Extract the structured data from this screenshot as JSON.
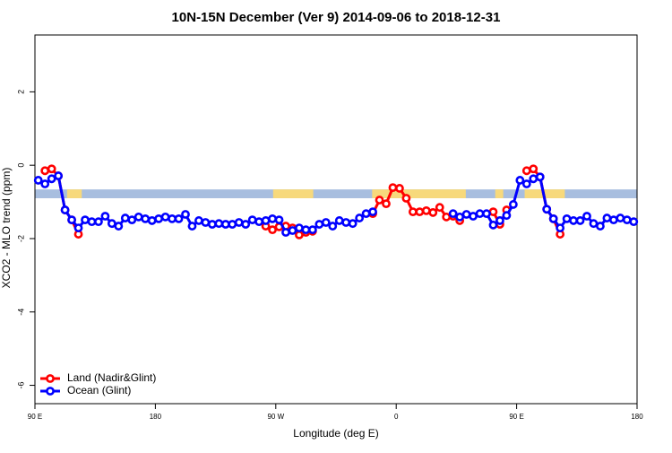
{
  "chart_data": {
    "type": "line",
    "title": "10N-15N December (Ver 9)   2014-09-06 to 2018-12-31",
    "x_label": "Longitude (deg E)",
    "y_label": "XCO2 - MLO trend (ppm)",
    "x": [
      92.5,
      97.5,
      102.5,
      107.5,
      112.5,
      117.5,
      122.5,
      127.5,
      132.5,
      137.5,
      142.5,
      147.5,
      152.5,
      157.5,
      162.5,
      167.5,
      172.5,
      177.5,
      182.5,
      187.5,
      192.5,
      197.5,
      202.5,
      207.5,
      212.5,
      217.5,
      222.5,
      227.5,
      232.5,
      237.5,
      242.5,
      247.5,
      252.5,
      257.5,
      262.5,
      267.5,
      272.5,
      277.5,
      282.5,
      287.5,
      292.5,
      297.5,
      302.5,
      307.5,
      312.5,
      317.5,
      322.5,
      327.5,
      332.5,
      337.5,
      342.5,
      347.5,
      352.5,
      357.5,
      362.5,
      367.5,
      372.5,
      377.5,
      382.5,
      387.5,
      392.5,
      397.5,
      402.5,
      407.5,
      412.5,
      417.5,
      422.5,
      427.5,
      432.5,
      437.5,
      442.5,
      447.5,
      452.5,
      457.5,
      462.5,
      467.5,
      472.5,
      477.5,
      482.5,
      487.5,
      492.5,
      497.5,
      502.5,
      507.5,
      512.5,
      517.5,
      522.5,
      527.5,
      532.5,
      537.5
    ],
    "series": [
      {
        "name": "Land (Nadir&Glint)",
        "color": "#ff0000",
        "values": [
          null,
          -0.15,
          -0.1,
          -0.29,
          -1.22,
          -1.49,
          -1.88,
          null,
          null,
          null,
          null,
          null,
          null,
          null,
          null,
          null,
          null,
          null,
          null,
          null,
          null,
          null,
          null,
          null,
          null,
          null,
          null,
          null,
          null,
          null,
          null,
          null,
          null,
          null,
          -1.66,
          -1.76,
          -1.68,
          -1.66,
          -1.71,
          -1.9,
          -1.83,
          -1.8,
          null,
          null,
          null,
          null,
          null,
          null,
          null,
          null,
          -1.32,
          -0.95,
          -1.05,
          -0.61,
          -0.63,
          -0.9,
          -1.27,
          -1.27,
          -1.24,
          -1.29,
          -1.15,
          -1.41,
          -1.39,
          -1.51,
          null,
          null,
          null,
          null,
          -1.27,
          -1.61,
          -1.22,
          null,
          null,
          -0.15,
          -0.1,
          -0.32,
          -1.2,
          -1.46,
          -1.88,
          null,
          null,
          null,
          null,
          null,
          null,
          null,
          null,
          null,
          null,
          null
        ]
      },
      {
        "name": "Ocean (Glint)",
        "color": "#0000ff",
        "values": [
          -0.41,
          -0.51,
          -0.37,
          -0.29,
          -1.22,
          -1.49,
          -1.71,
          -1.49,
          -1.54,
          -1.54,
          -1.39,
          -1.59,
          -1.66,
          -1.44,
          -1.49,
          -1.41,
          -1.46,
          -1.51,
          -1.46,
          -1.41,
          -1.46,
          -1.46,
          -1.34,
          -1.66,
          -1.51,
          -1.56,
          -1.61,
          -1.59,
          -1.61,
          -1.61,
          -1.56,
          -1.61,
          -1.49,
          -1.54,
          -1.51,
          -1.46,
          -1.49,
          -1.83,
          -1.78,
          -1.71,
          -1.76,
          -1.76,
          -1.61,
          -1.56,
          -1.66,
          -1.51,
          -1.56,
          -1.59,
          -1.44,
          -1.32,
          -1.27,
          null,
          null,
          null,
          null,
          null,
          null,
          null,
          null,
          null,
          null,
          null,
          -1.32,
          -1.41,
          -1.34,
          -1.39,
          -1.32,
          -1.32,
          -1.63,
          -1.51,
          -1.37,
          -1.07,
          -0.41,
          -0.51,
          -0.37,
          -0.32,
          -1.2,
          -1.46,
          -1.71,
          -1.46,
          -1.51,
          -1.51,
          -1.39,
          -1.59,
          -1.66,
          -1.44,
          -1.49,
          -1.44,
          -1.49,
          -1.54
        ]
      }
    ],
    "band": [
      -0.9,
      -0.66
    ],
    "band_color": "#a8bedf",
    "land_color": "#f7d97c",
    "land_regions": [
      [
        114,
        125
      ],
      [
        268,
        298
      ],
      [
        342,
        412
      ],
      [
        434,
        440
      ],
      [
        456,
        486
      ]
    ],
    "xlim": [
      90,
      540
    ],
    "xticks": [
      {
        "value": 90,
        "label": "90 E"
      },
      {
        "value": 180,
        "label": "180"
      },
      {
        "value": 270,
        "label": "90 W"
      },
      {
        "value": 360,
        "label": "0"
      },
      {
        "value": 450,
        "label": "90 E"
      },
      {
        "value": 540,
        "label": "180"
      }
    ],
    "ylim": [
      -6.5,
      3.55
    ],
    "yticks": [
      2,
      0,
      -2,
      -4,
      -6
    ],
    "legend": "bottom-left"
  }
}
